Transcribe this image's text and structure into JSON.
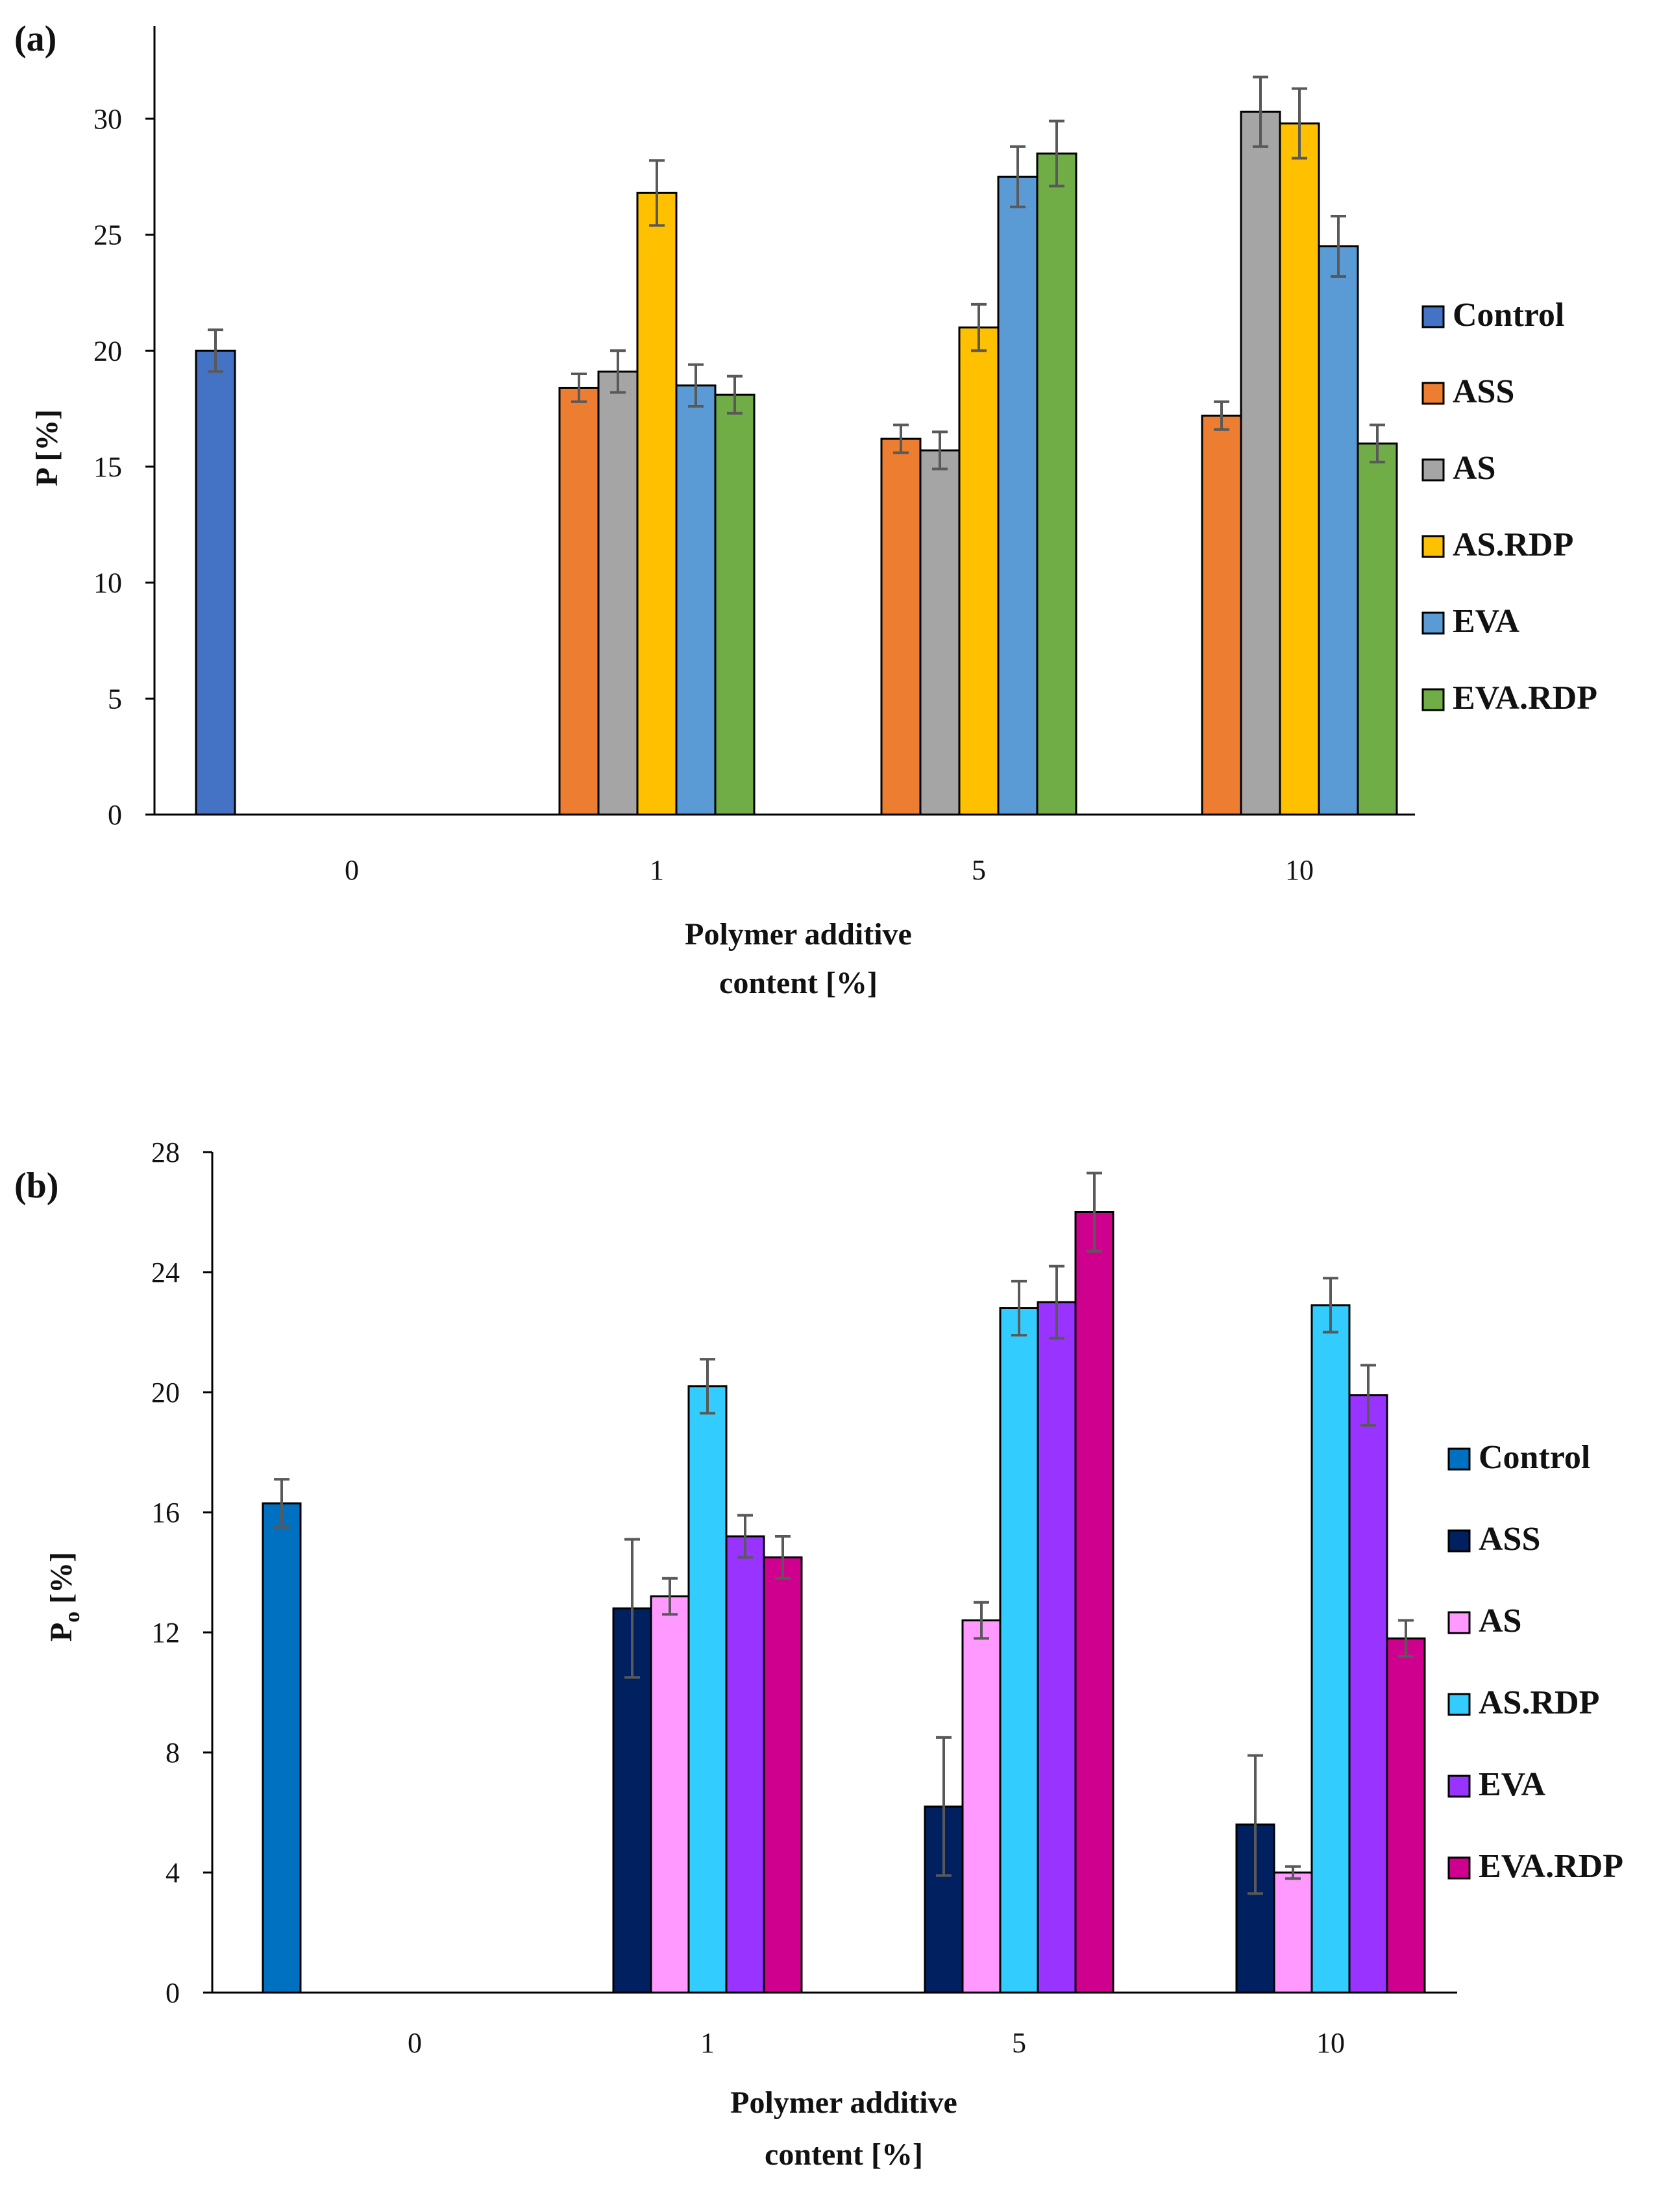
{
  "chart_data": [
    {
      "panel_label": "(a)",
      "type": "bar",
      "ylabel": "P [%]",
      "xlabel_lines": [
        "Polymer additive",
        "content [%]"
      ],
      "categories": [
        "0",
        "1",
        "5",
        "10"
      ],
      "ylim": [
        0,
        34
      ],
      "yticks": [
        0,
        5,
        10,
        15,
        20,
        25,
        30
      ],
      "legend_position": "right",
      "series": [
        {
          "name": "Control",
          "color": "#4472C4",
          "values": [
            20.0,
            null,
            null,
            null
          ],
          "errors": [
            0.9,
            null,
            null,
            null
          ]
        },
        {
          "name": "ASS",
          "color": "#ED7D31",
          "values": [
            null,
            18.4,
            16.2,
            17.2
          ],
          "errors": [
            null,
            0.6,
            0.6,
            0.6
          ]
        },
        {
          "name": "AS",
          "color": "#A5A5A5",
          "values": [
            null,
            19.1,
            15.7,
            30.3
          ],
          "errors": [
            null,
            0.9,
            0.8,
            1.5
          ]
        },
        {
          "name": "AS.RDP",
          "color": "#FFC000",
          "values": [
            null,
            26.8,
            21.0,
            29.8
          ],
          "errors": [
            null,
            1.4,
            1.0,
            1.5
          ]
        },
        {
          "name": "EVA",
          "color": "#5B9BD5",
          "values": [
            null,
            18.5,
            27.5,
            24.5
          ],
          "errors": [
            null,
            0.9,
            1.3,
            1.3
          ]
        },
        {
          "name": "EVA.RDP",
          "color": "#70AD47",
          "values": [
            null,
            18.1,
            28.5,
            16.0
          ],
          "errors": [
            null,
            0.8,
            1.4,
            0.8
          ]
        }
      ]
    },
    {
      "panel_label": "(b)",
      "type": "bar",
      "ylabel": "P",
      "ylabel_sub": "o",
      "ylabel_suffix": " [%]",
      "xlabel_lines": [
        "Polymer additive",
        "content [%]"
      ],
      "categories": [
        "0",
        "1",
        "5",
        "10"
      ],
      "ylim": [
        0,
        28
      ],
      "yticks": [
        0,
        4,
        8,
        12,
        16,
        20,
        24,
        28
      ],
      "legend_position": "right",
      "series": [
        {
          "name": "Control",
          "color": "#0070C0",
          "values": [
            16.3,
            null,
            null,
            null
          ],
          "errors": [
            0.8,
            null,
            null,
            null
          ]
        },
        {
          "name": "ASS",
          "color": "#002060",
          "values": [
            null,
            12.8,
            6.2,
            5.6
          ],
          "errors": [
            null,
            2.3,
            2.3,
            2.3
          ]
        },
        {
          "name": "AS",
          "color": "#FF99FF",
          "values": [
            null,
            13.2,
            12.4,
            4.0
          ],
          "errors": [
            null,
            0.6,
            0.6,
            0.2
          ]
        },
        {
          "name": "AS.RDP",
          "color": "#33CCFF",
          "values": [
            null,
            20.2,
            22.8,
            22.9
          ],
          "errors": [
            null,
            0.9,
            0.9,
            0.9
          ]
        },
        {
          "name": "EVA",
          "color": "#9933FF",
          "values": [
            null,
            15.2,
            23.0,
            19.9
          ],
          "errors": [
            null,
            0.7,
            1.2,
            1.0
          ]
        },
        {
          "name": "EVA.RDP",
          "color": "#D0008F",
          "values": [
            null,
            14.5,
            26.0,
            11.8
          ],
          "errors": [
            null,
            0.7,
            1.3,
            0.6
          ]
        }
      ]
    }
  ]
}
